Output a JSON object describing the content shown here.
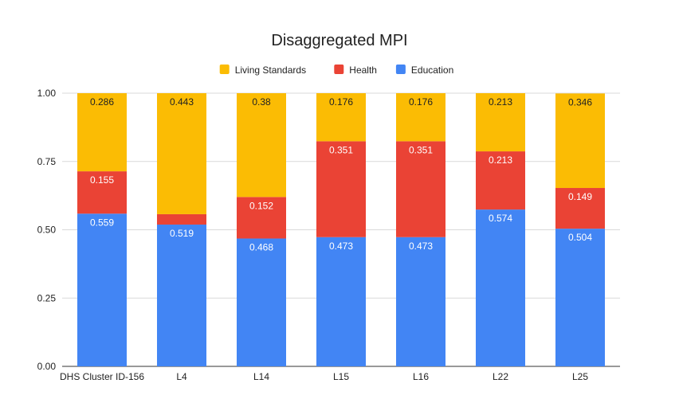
{
  "chart_data": {
    "type": "bar",
    "stacked": true,
    "title": "Disaggregated MPI",
    "xlabel": "",
    "ylabel": "",
    "ylim": [
      0,
      1.0
    ],
    "yticks": [
      "0.00",
      "0.25",
      "0.50",
      "0.75",
      "1.00"
    ],
    "categories": [
      "DHS Cluster ID-156",
      "L4",
      "L14",
      "L15",
      "L16",
      "L22",
      "L25"
    ],
    "series": [
      {
        "name": "Education",
        "color": "#4285F4",
        "values": [
          0.559,
          0.519,
          0.468,
          0.473,
          0.473,
          0.574,
          0.504
        ],
        "labels": [
          "0.559",
          "0.519",
          "0.468",
          "0.473",
          "0.473",
          "0.574",
          "0.504"
        ]
      },
      {
        "name": "Health",
        "color": "#EA4335",
        "values": [
          0.155,
          0.038,
          0.152,
          0.351,
          0.351,
          0.213,
          0.149
        ],
        "labels": [
          "0.155",
          "0.038",
          "0.152",
          "0.351",
          "0.351",
          "0.213",
          "0.149"
        ]
      },
      {
        "name": "Living Standards",
        "color": "#FBBC04",
        "values": [
          0.286,
          0.443,
          0.38,
          0.176,
          0.176,
          0.213,
          0.346
        ],
        "labels": [
          "0.286",
          "0.443",
          "0.38",
          "0.176",
          "0.176",
          "0.213",
          "0.346"
        ]
      }
    ],
    "legend": {
      "position": "top",
      "order": [
        "Living Standards",
        "Health",
        "Education"
      ]
    },
    "grid": true
  }
}
